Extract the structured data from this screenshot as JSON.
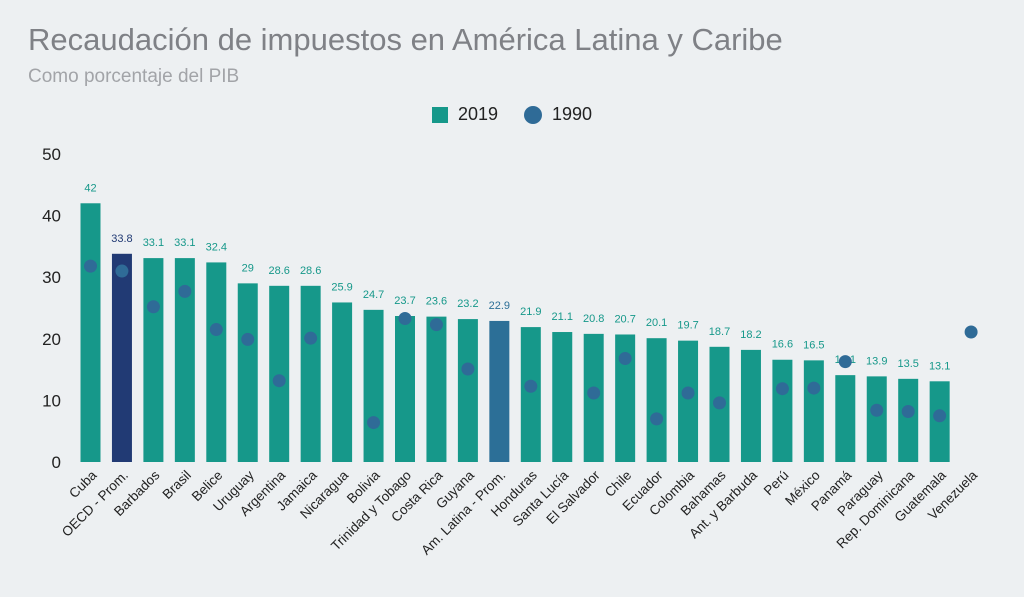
{
  "chart_data": {
    "type": "bar",
    "title": "Recaudación de impuestos en América Latina y Caribe",
    "subtitle": "Como porcentaje del PIB",
    "ylim": [
      0,
      50
    ],
    "yticks": [
      0,
      10,
      20,
      30,
      40,
      50
    ],
    "grid": false,
    "legend_position": "top-center",
    "categories": [
      "Cuba",
      "OECD - Prom.",
      "Barbados",
      "Brasil",
      "Belice",
      "Uruguay",
      "Argentina",
      "Jamaica",
      "Nicaragua",
      "Bolivia",
      "Trinidad y Tobago",
      "Costa Rica",
      "Guyana",
      "Am. Latina - Prom.",
      "Honduras",
      "Santa Lucía",
      "El Salvador",
      "Chile",
      "Ecuador",
      "Colombia",
      "Bahamas",
      "Ant. y Barbuda",
      "Perú",
      "México",
      "Panamá",
      "Paraguay",
      "Rep. Dominicana",
      "Guatemala",
      "Venezuela"
    ],
    "series": [
      {
        "name": "2019",
        "mark": "bar",
        "values": [
          42,
          33.8,
          33.1,
          33.1,
          32.4,
          29,
          28.6,
          28.6,
          25.9,
          24.7,
          23.7,
          23.6,
          23.2,
          22.9,
          21.9,
          21.1,
          20.8,
          20.7,
          20.1,
          19.7,
          18.7,
          18.2,
          16.6,
          16.5,
          14.1,
          13.9,
          13.5,
          13.1,
          null
        ],
        "labels": [
          "42",
          "33.8",
          "33.1",
          "33.1",
          "32.4",
          "29",
          "28.6",
          "28.6",
          "25.9",
          "24.7",
          "23.7",
          "23.6",
          "23.2",
          "22.9",
          "21.9",
          "21.1",
          "20.8",
          "20.7",
          "20.1",
          "19.7",
          "18.7",
          "18.2",
          "16.6",
          "16.5",
          "14.1",
          "13.9",
          "13.5",
          "13.1",
          ""
        ]
      },
      {
        "name": "1990",
        "mark": "dot",
        "values": [
          31.8,
          31,
          25.2,
          27.7,
          21.5,
          19.9,
          13.2,
          20.1,
          null,
          6.4,
          23.3,
          22.3,
          15.1,
          null,
          12.3,
          null,
          11.2,
          16.8,
          7,
          11.2,
          9.6,
          null,
          11.9,
          12,
          16.3,
          8.4,
          8.2,
          7.5,
          21.1
        ]
      }
    ],
    "colors": {
      "bar_default": "#16988a",
      "bar_oecd": "#213a74",
      "bar_latam": "#2c6f97",
      "dot": "#2f6b97",
      "label_default": "#16988a",
      "label_oecd": "#213a74",
      "label_latam": "#2c6f97",
      "background": "#edf0f2"
    }
  }
}
